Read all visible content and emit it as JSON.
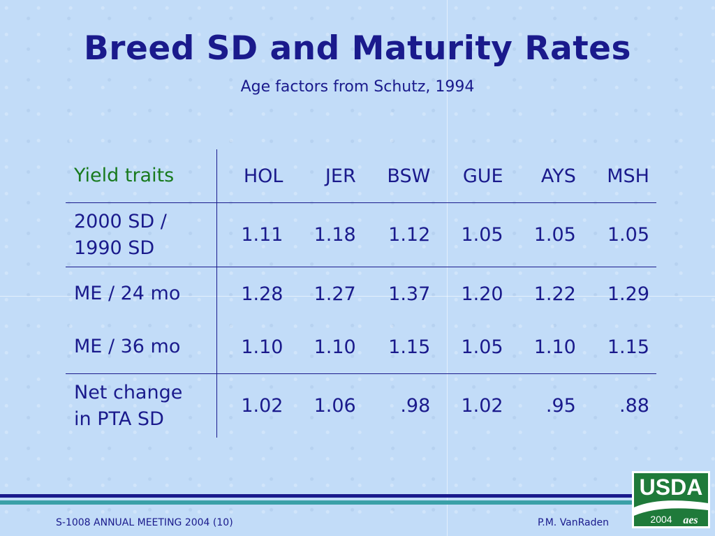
{
  "slide": {
    "title": "Breed SD and Maturity Rates",
    "subtitle": "Age factors from Schutz, 1994"
  },
  "table": {
    "header_label": "Yield traits",
    "columns": [
      "HOL",
      "JER",
      "BSW",
      "GUE",
      "AYS",
      "MSH"
    ],
    "rows": [
      {
        "label_line1": "2000 SD /",
        "label_line2": "1990 SD",
        "values": [
          "1.11",
          "1.18",
          "1.12",
          "1.05",
          "1.05",
          "1.05"
        ]
      },
      {
        "label_line1": "ME / 24 mo",
        "label_line2": "",
        "values": [
          "1.28",
          "1.27",
          "1.37",
          "1.20",
          "1.22",
          "1.29"
        ]
      },
      {
        "label_line1": "ME / 36 mo",
        "label_line2": "",
        "values": [
          "1.10",
          "1.10",
          "1.15",
          "1.05",
          "1.10",
          "1.15"
        ]
      },
      {
        "label_line1": "Net change",
        "label_line2": "in PTA SD",
        "values": [
          "1.02",
          "1.06",
          ".98",
          "1.02",
          ".95",
          ".88"
        ]
      }
    ]
  },
  "footer": {
    "left": "S-1008 ANNUAL MEETING 2004 (10)",
    "right": "P.M. VanRaden"
  },
  "logo": {
    "text": "USDA",
    "year": "2004",
    "mark": "aes"
  },
  "colors": {
    "background": "#c2dcf8",
    "text": "#1a1a8c",
    "header_label": "#187a1e",
    "band_teal": "#3aa0a8",
    "logo_green": "#1f7a3a"
  }
}
